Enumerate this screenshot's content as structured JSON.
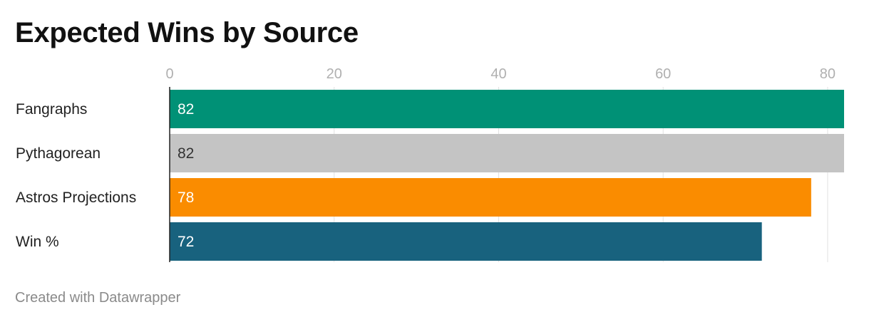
{
  "title": "Expected Wins by Source",
  "credit": "Created with Datawrapper",
  "chart_data": {
    "type": "bar",
    "orientation": "horizontal",
    "categories": [
      "Fangraphs",
      "Pythagorean",
      "Astros Projections",
      "Win %"
    ],
    "values": [
      82,
      82,
      78,
      72
    ],
    "labels": [
      "82",
      "82",
      "78",
      "72"
    ],
    "colors": [
      "#009176",
      "#c4c4c4",
      "#fa8c00",
      "#18627e"
    ],
    "label_colors": [
      "#ffffff",
      "#333333",
      "#ffffff",
      "#ffffff"
    ],
    "xlim": [
      0,
      82
    ],
    "xticks": [
      0,
      20,
      40,
      60,
      80
    ],
    "grid": true,
    "axis_color": "#b0b0b0",
    "grid_color": "#e0e0e0"
  }
}
